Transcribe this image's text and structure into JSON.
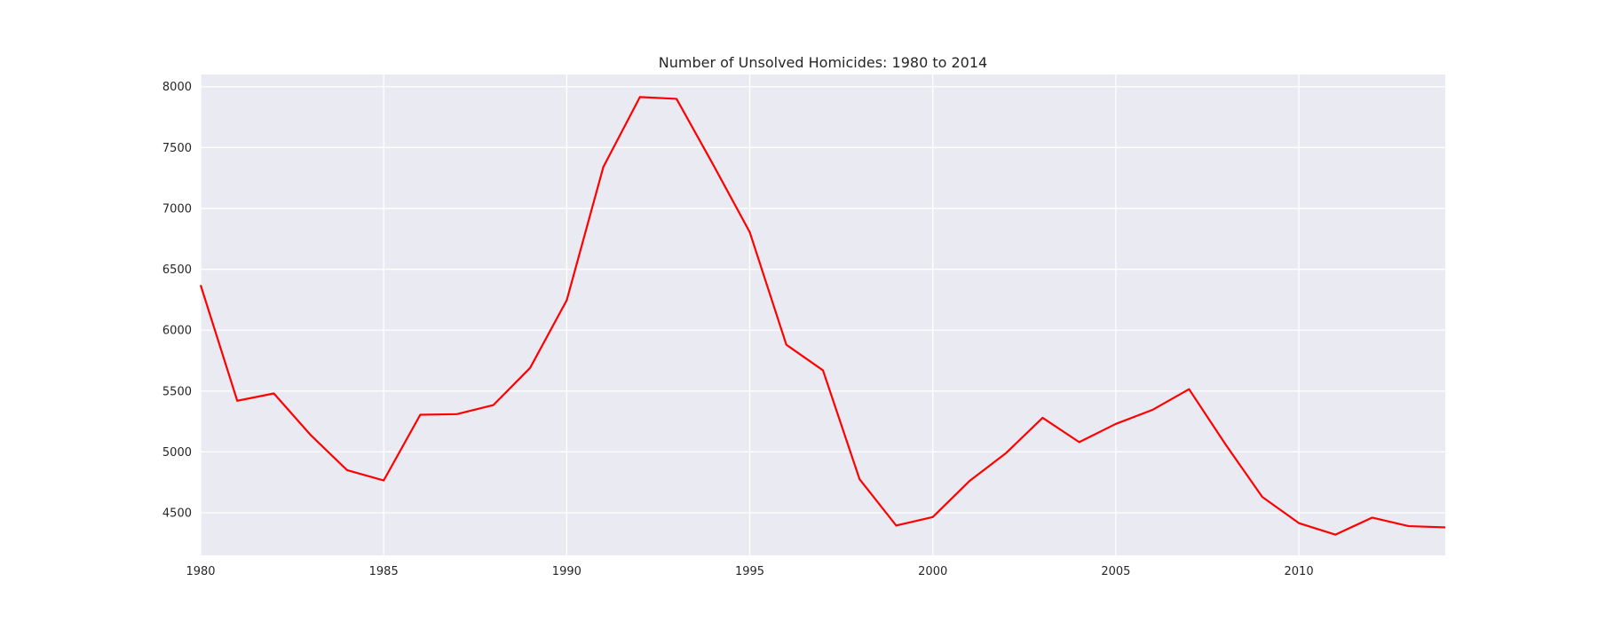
{
  "chart_data": {
    "type": "line",
    "title": "Number of Unsolved Homicides: 1980 to 2014",
    "xlabel": "",
    "ylabel": "",
    "xlim": [
      1980,
      2014
    ],
    "ylim": [
      4150,
      8100
    ],
    "xticks": [
      1980,
      1985,
      1990,
      1995,
      2000,
      2005,
      2010
    ],
    "yticks": [
      4500,
      5000,
      5500,
      6000,
      6500,
      7000,
      7500,
      8000
    ],
    "grid": true,
    "background_color": "#eaeaf2",
    "grid_color": "#ffffff",
    "series": [
      {
        "color": "#ff0000",
        "x": [
          1980,
          1981,
          1982,
          1983,
          1984,
          1985,
          1986,
          1987,
          1988,
          1989,
          1990,
          1991,
          1992,
          1993,
          1994,
          1995,
          1996,
          1997,
          1998,
          1999,
          2000,
          2001,
          2002,
          2003,
          2004,
          2005,
          2006,
          2007,
          2008,
          2009,
          2010,
          2011,
          2012,
          2013,
          2014
        ],
        "y": [
          6370,
          5420,
          5480,
          5140,
          4850,
          4765,
          5305,
          5310,
          5385,
          5690,
          6245,
          7340,
          7915,
          7900,
          7360,
          6805,
          5880,
          5670,
          4775,
          4395,
          4465,
          4760,
          4990,
          5280,
          5080,
          5230,
          5345,
          5515,
          5060,
          4630,
          4415,
          4320,
          4460,
          4390,
          4380
        ]
      }
    ]
  }
}
